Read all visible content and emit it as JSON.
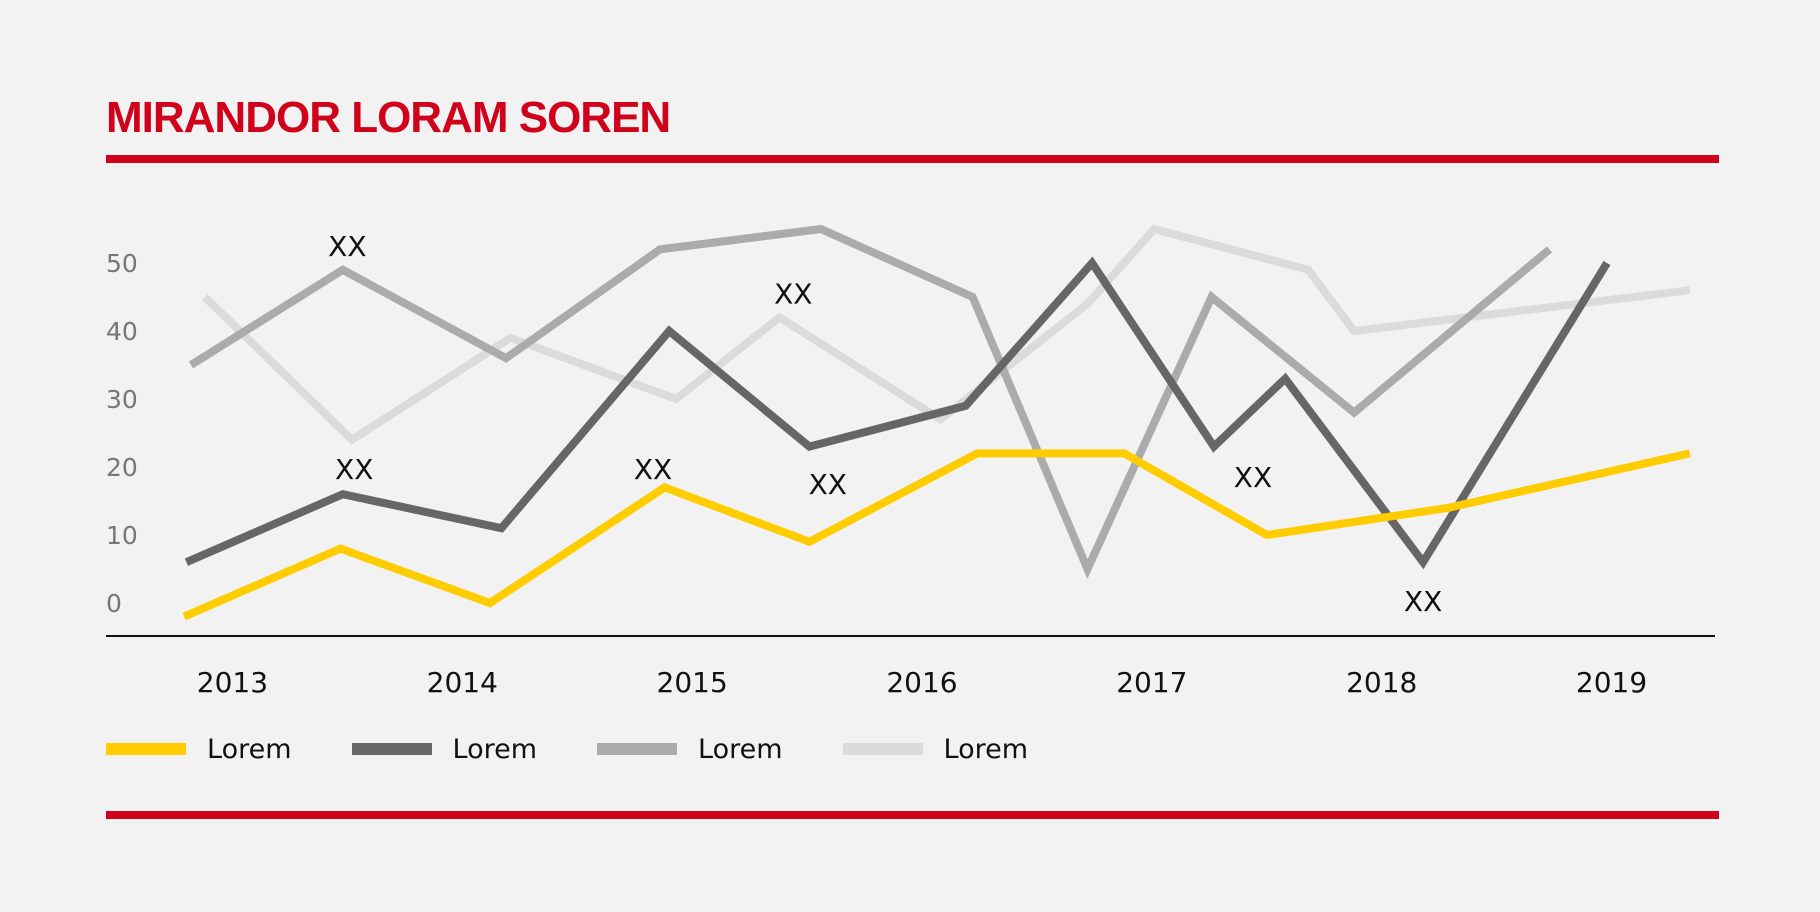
{
  "header": {
    "title": "MIRANDOR LORAM SOREN"
  },
  "colors": {
    "accent": "#d0021b",
    "background": "#f2f2f2"
  },
  "chart_data": {
    "type": "line",
    "title": "MIRANDOR LORAM SOREN",
    "xlabel": "",
    "ylabel": "",
    "categories": [
      "2013",
      "2014",
      "2015",
      "2016",
      "2017",
      "2018",
      "2019"
    ],
    "x_domain": [
      2012.45,
      2019.45
    ],
    "y_ticks": [
      0,
      10,
      20,
      30,
      40,
      50
    ],
    "ylim": [
      -5,
      60
    ],
    "grid": false,
    "legend_position": "bottom-left",
    "series": [
      {
        "name": "Lorem",
        "color": "#dbdbdb",
        "points": [
          [
            2012.88,
            45
          ],
          [
            2013.52,
            24
          ],
          [
            2014.21,
            39
          ],
          [
            2014.93,
            30
          ],
          [
            2015.38,
            42
          ],
          [
            2016.08,
            27
          ],
          [
            2016.72,
            44
          ],
          [
            2017.01,
            55
          ],
          [
            2017.68,
            49
          ],
          [
            2017.88,
            40
          ],
          [
            2019.34,
            46
          ]
        ]
      },
      {
        "name": "Lorem",
        "color": "#ababab",
        "points": [
          [
            2012.82,
            35
          ],
          [
            2013.48,
            49
          ],
          [
            2014.19,
            36
          ],
          [
            2014.86,
            52
          ],
          [
            2015.56,
            55
          ],
          [
            2016.22,
            45
          ],
          [
            2016.72,
            5
          ],
          [
            2017.26,
            45
          ],
          [
            2017.88,
            28
          ],
          [
            2018.73,
            52
          ]
        ]
      },
      {
        "name": "Lorem",
        "color": "#666666",
        "points": [
          [
            2012.8,
            6
          ],
          [
            2013.48,
            16
          ],
          [
            2014.17,
            11
          ],
          [
            2014.9,
            40
          ],
          [
            2015.51,
            23
          ],
          [
            2016.19,
            29
          ],
          [
            2016.74,
            50
          ],
          [
            2017.27,
            23
          ],
          [
            2017.58,
            33
          ],
          [
            2018.18,
            6
          ],
          [
            2018.98,
            50
          ]
        ]
      },
      {
        "name": "Lorem",
        "color": "#ffcc00",
        "points": [
          [
            2012.79,
            -2
          ],
          [
            2013.47,
            8
          ],
          [
            2014.12,
            0
          ],
          [
            2014.88,
            17
          ],
          [
            2015.51,
            9
          ],
          [
            2016.24,
            22
          ],
          [
            2016.88,
            22
          ],
          [
            2017.5,
            10
          ],
          [
            2018.29,
            14
          ],
          [
            2019.34,
            22
          ]
        ]
      }
    ],
    "legend_order": [
      3,
      2,
      1,
      0
    ],
    "annotations": [
      {
        "text": "XX",
        "x": 2013.5,
        "y": 52.5
      },
      {
        "text": "XX",
        "x": 2015.44,
        "y": 45.5
      },
      {
        "text": "XX",
        "x": 2013.53,
        "y": 19.7
      },
      {
        "text": "XX",
        "x": 2014.83,
        "y": 19.7
      },
      {
        "text": "XX",
        "x": 2015.59,
        "y": 17.5
      },
      {
        "text": "XX",
        "x": 2017.44,
        "y": 18.5
      },
      {
        "text": "XX",
        "x": 2018.18,
        "y": 0.3
      }
    ]
  }
}
